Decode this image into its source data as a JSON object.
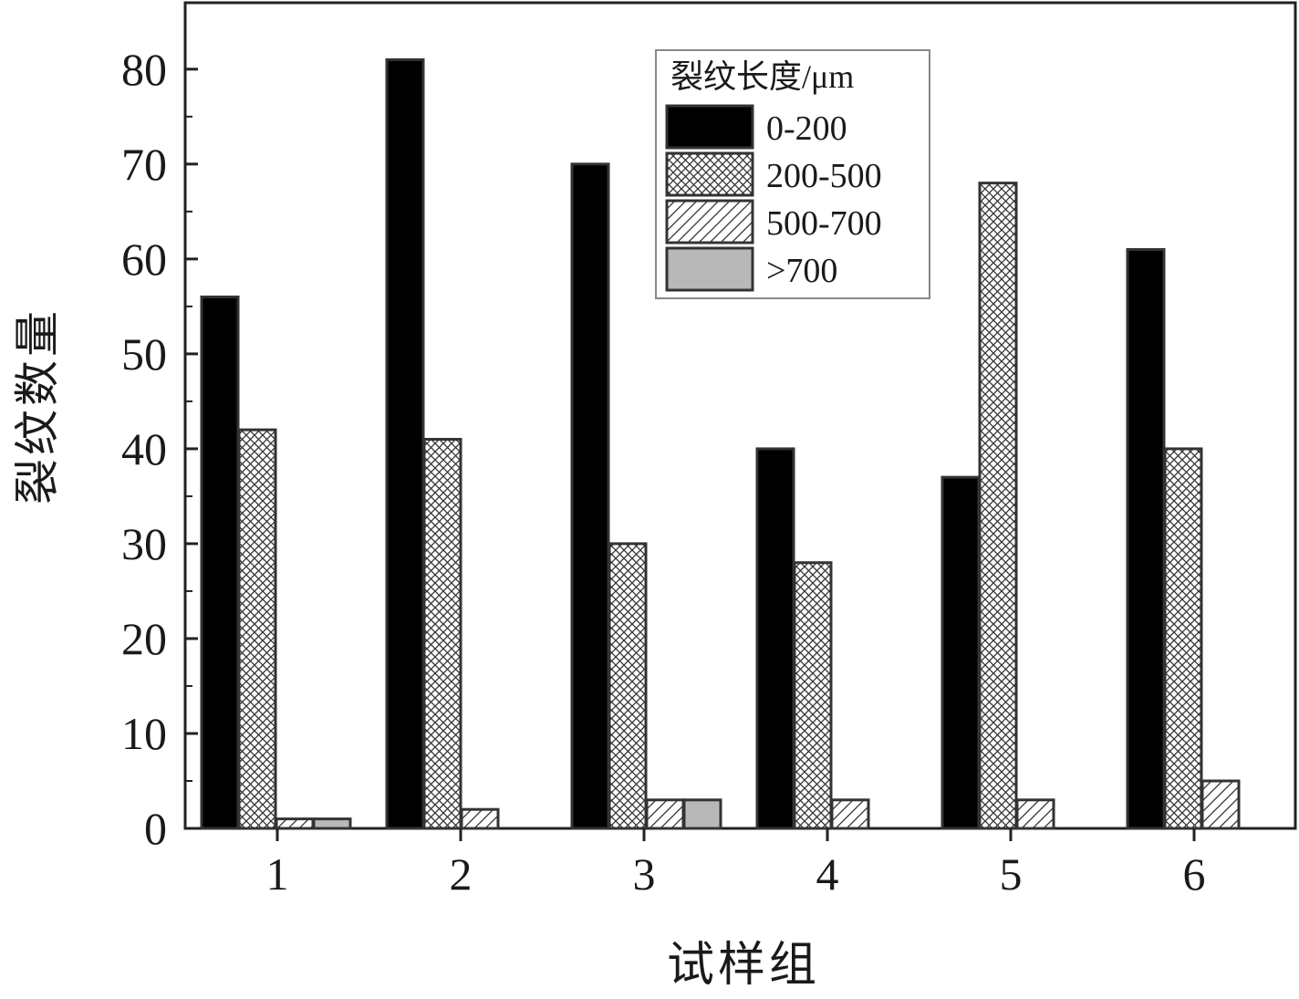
{
  "chart_data": {
    "type": "bar",
    "xlabel": "试样组",
    "ylabel": "裂纹数量",
    "categories": [
      "1",
      "2",
      "3",
      "4",
      "5",
      "6"
    ],
    "ylim": [
      0,
      87
    ],
    "yticks": [
      "0",
      "10",
      "20",
      "30",
      "40",
      "50",
      "60",
      "70",
      "80"
    ],
    "legend": {
      "title": "裂纹长度/μm",
      "placement": "top-center"
    },
    "series": [
      {
        "name": "0-200",
        "pattern": "solid",
        "color": "#000000",
        "values": [
          56,
          81,
          70,
          40,
          37,
          61
        ]
      },
      {
        "name": "200-500",
        "pattern": "crosshatch",
        "color": "#ffffff",
        "values": [
          42,
          41,
          30,
          28,
          68,
          40
        ]
      },
      {
        "name": "500-700",
        "pattern": "diagonal",
        "color": "#ffffff",
        "values": [
          1,
          2,
          3,
          3,
          3,
          5
        ]
      },
      {
        "name": ">700",
        "pattern": "solid",
        "color": "#b8b8b8",
        "values": [
          1,
          0,
          3,
          0,
          0,
          0
        ]
      }
    ]
  }
}
